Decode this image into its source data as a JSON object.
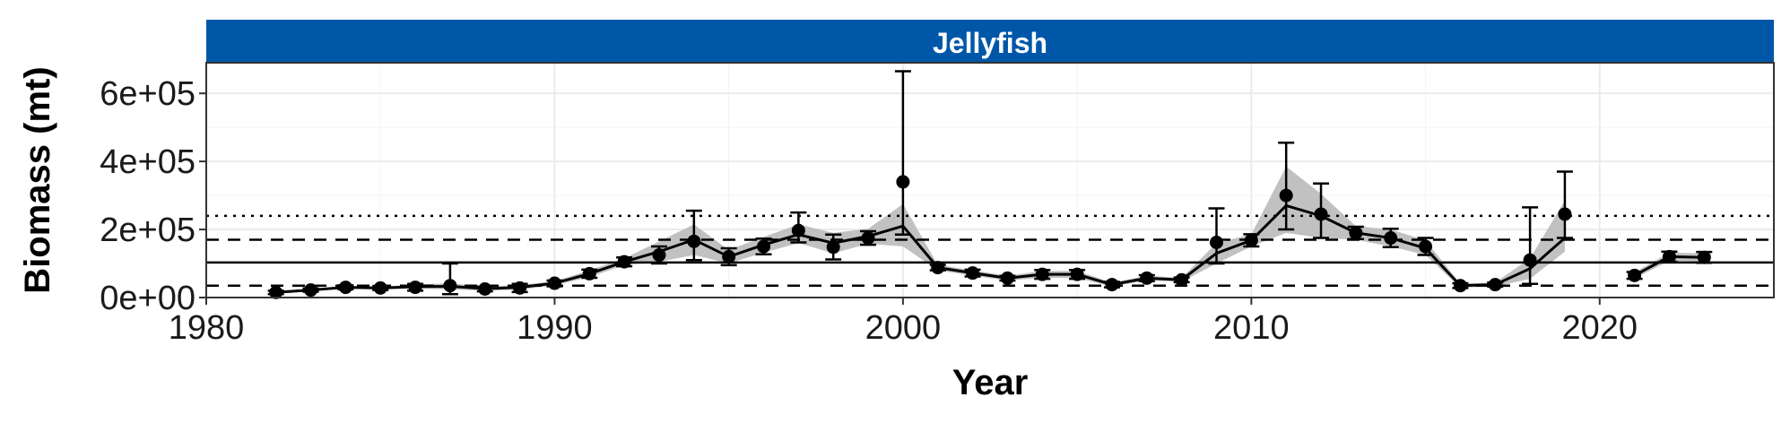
{
  "colors": {
    "strip": "#0057a8",
    "ribbon": "#bebebe",
    "line": "#000000",
    "grid": "#ebebeb"
  },
  "chart_data": {
    "type": "line",
    "facet_title": "Jellyfish",
    "xlabel": "Year",
    "ylabel": "Biomass (mt)",
    "xlim": [
      1980,
      2025
    ],
    "ylim": [
      0,
      600000
    ],
    "x_ticks": [
      1980,
      1990,
      2000,
      2010,
      2020
    ],
    "y_ticks": [
      0,
      200000,
      400000,
      600000
    ],
    "y_tick_labels": [
      "0e+00",
      "2e+05",
      "4e+05",
      "6e+05"
    ],
    "grid": true,
    "legend": "none",
    "reference_lines": [
      {
        "y": 240000,
        "style": "dotted"
      },
      {
        "y": 170000,
        "style": "dashed"
      },
      {
        "y": 103000,
        "style": "solid"
      },
      {
        "y": 35000,
        "style": "dashed"
      }
    ],
    "series": [
      {
        "x": [
          1982,
          1983,
          1984,
          1985,
          1986,
          1987,
          1988,
          1989,
          1990,
          1991,
          1992,
          1993,
          1994,
          1995,
          1996,
          1997,
          1998,
          1999,
          2000,
          2001,
          2002,
          2003,
          2004,
          2005,
          2006,
          2007,
          2008,
          2009,
          2010,
          2011,
          2012,
          2013,
          2014,
          2015,
          2016,
          2017,
          2018,
          2019,
          2021,
          2022,
          2023
        ],
        "y": [
          15000,
          22000,
          30000,
          28000,
          30000,
          35000,
          25000,
          28000,
          42000,
          70000,
          105000,
          125000,
          165000,
          120000,
          150000,
          197000,
          148000,
          175000,
          340000,
          88000,
          72000,
          57000,
          68000,
          68000,
          38000,
          57000,
          52000,
          162000,
          168000,
          300000,
          245000,
          190000,
          175000,
          150000,
          35000,
          38000,
          110000,
          245000,
          65000,
          120000,
          118000
        ],
        "y_low": [
          10000,
          17000,
          24000,
          22000,
          20000,
          10000,
          18000,
          16000,
          33000,
          58000,
          92000,
          100000,
          110000,
          95000,
          127000,
          162000,
          112000,
          155000,
          185000,
          80000,
          62000,
          50000,
          55000,
          55000,
          30000,
          48000,
          45000,
          100000,
          150000,
          200000,
          175000,
          172000,
          148000,
          125000,
          28000,
          32000,
          40000,
          175000,
          55000,
          105000,
          102000
        ],
        "y_high": [
          20000,
          27000,
          36000,
          34000,
          40000,
          100000,
          32000,
          40000,
          50000,
          82000,
          118000,
          150000,
          255000,
          145000,
          173000,
          250000,
          185000,
          195000,
          665000,
          96000,
          82000,
          64000,
          81000,
          81000,
          46000,
          66000,
          59000,
          262000,
          186000,
          455000,
          335000,
          208000,
          202000,
          175000,
          42000,
          44000,
          265000,
          370000,
          75000,
          135000,
          134000
        ],
        "fit": [
          15000,
          22000,
          30000,
          28000,
          32000,
          33000,
          26000,
          30000,
          42000,
          70000,
          105000,
          135000,
          170000,
          120000,
          155000,
          185000,
          160000,
          180000,
          210000,
          88000,
          72000,
          57000,
          68000,
          68000,
          38000,
          57000,
          52000,
          130000,
          168000,
          270000,
          240000,
          190000,
          175000,
          145000,
          35000,
          38000,
          85000,
          175000,
          65000,
          120000,
          118000
        ],
        "fit_low": [
          11000,
          18000,
          26000,
          24000,
          26000,
          24000,
          20000,
          23000,
          36000,
          60000,
          95000,
          105000,
          125000,
          100000,
          132000,
          160000,
          130000,
          158000,
          150000,
          80000,
          64000,
          50000,
          58000,
          58000,
          32000,
          50000,
          46000,
          100000,
          150000,
          190000,
          175000,
          170000,
          150000,
          125000,
          29000,
          32000,
          55000,
          135000,
          56000,
          108000,
          106000
        ],
        "fit_high": [
          19000,
          26000,
          34000,
          32000,
          38000,
          42000,
          32000,
          37000,
          48000,
          80000,
          115000,
          165000,
          215000,
          140000,
          178000,
          215000,
          190000,
          202000,
          275000,
          96000,
          80000,
          64000,
          78000,
          78000,
          44000,
          64000,
          58000,
          160000,
          186000,
          385000,
          305000,
          210000,
          200000,
          168000,
          41000,
          44000,
          115000,
          285000,
          74000,
          132000,
          130000
        ]
      }
    ]
  }
}
